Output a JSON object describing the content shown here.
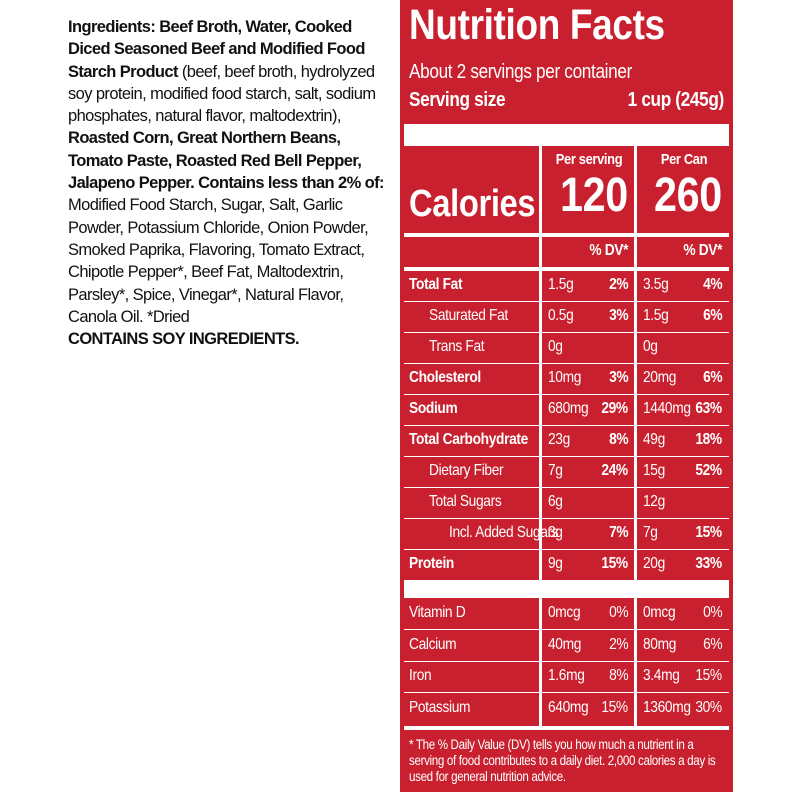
{
  "ingredients": {
    "segments": [
      {
        "text": "Ingredients: Beef Broth, Water, Cooked Diced Seasoned Beef and Modified Food Starch Product",
        "bold": true
      },
      {
        "text": " (beef, beef broth, hydrolyzed soy protein, modified food starch, salt, sodium phosphates, natural flavor, maltodextrin), ",
        "bold": false
      },
      {
        "text": "Roasted Corn, Great Northern Beans, Tomato Paste, Roasted Red Bell Pepper, Jalapeno Pepper. Contains less than 2% of:",
        "bold": true
      },
      {
        "text": " Modified Food Starch, Sugar, Salt, Garlic Powder, Potassium Chloride, Onion Powder, Smoked Paprika, Flavoring, Tomato Extract, Chipotle Pepper*, Beef Fat, Maltodextrin, Parsley*, Spice, Vinegar*, Natural Flavor, Canola Oil. *Dried",
        "bold": false
      }
    ],
    "allergens": "CONTAINS SOY INGREDIENTS."
  },
  "label": {
    "title": "Nutrition Facts",
    "servings": "About 2 servings per container",
    "serving_size_label": "Serving size",
    "serving_size": "1 cup (245g)",
    "columns": [
      "Per serving",
      "Per Can"
    ],
    "calories_label": "Calories",
    "calories": [
      "120",
      "260"
    ],
    "dv_header": [
      "% DV*",
      "% DV*"
    ],
    "nutrients": [
      {
        "name": "Total Fat",
        "bold": true,
        "indent": 0,
        "serving": [
          "1.5g",
          "2%"
        ],
        "can": [
          "3.5g",
          "4%"
        ]
      },
      {
        "name": "Saturated Fat",
        "bold": false,
        "indent": 1,
        "serving": [
          "0.5g",
          "3%"
        ],
        "can": [
          "1.5g",
          "6%"
        ]
      },
      {
        "name": "Trans Fat",
        "bold": false,
        "indent": 1,
        "serving": [
          "0g",
          null
        ],
        "can": [
          "0g",
          null
        ]
      },
      {
        "name": "Cholesterol",
        "bold": true,
        "indent": 0,
        "serving": [
          "10mg",
          "3%"
        ],
        "can": [
          "20mg",
          "6%"
        ]
      },
      {
        "name": "Sodium",
        "bold": true,
        "indent": 0,
        "serving": [
          "680mg",
          "29%"
        ],
        "can": [
          "1440mg",
          "63%"
        ]
      },
      {
        "name": "Total Carbohydrate",
        "bold": true,
        "indent": 0,
        "serving": [
          "23g",
          "8%"
        ],
        "can": [
          "49g",
          "18%"
        ]
      },
      {
        "name": "Dietary Fiber",
        "bold": false,
        "indent": 1,
        "serving": [
          "7g",
          "24%"
        ],
        "can": [
          "15g",
          "52%"
        ]
      },
      {
        "name": "Total Sugars",
        "bold": false,
        "indent": 1,
        "serving": [
          "6g",
          null
        ],
        "can": [
          "12g",
          null
        ]
      },
      {
        "name": "Incl. Added Sugars",
        "bold": false,
        "indent": 2,
        "serving": [
          "3g",
          "7%"
        ],
        "can": [
          "7g",
          "15%"
        ]
      },
      {
        "name": "Protein",
        "bold": true,
        "indent": 0,
        "serving": [
          "9g",
          "15%"
        ],
        "can": [
          "20g",
          "33%"
        ]
      }
    ],
    "vitamins": [
      {
        "name": "Vitamin D",
        "serving": [
          "0mcg",
          "0%"
        ],
        "can": [
          "0mcg",
          "0%"
        ]
      },
      {
        "name": "Calcium",
        "serving": [
          "40mg",
          "2%"
        ],
        "can": [
          "80mg",
          "6%"
        ]
      },
      {
        "name": "Iron",
        "serving": [
          "1.6mg",
          "8%"
        ],
        "can": [
          "3.4mg",
          "15%"
        ]
      },
      {
        "name": "Potassium",
        "serving": [
          "640mg",
          "15%"
        ],
        "can": [
          "1360mg",
          "30%"
        ]
      }
    ],
    "footnote": "* The % Daily Value (DV) tells you how much a nutrient in a serving of food contributes to a daily diet. 2,000 calories a day is used for general nutrition advice."
  }
}
